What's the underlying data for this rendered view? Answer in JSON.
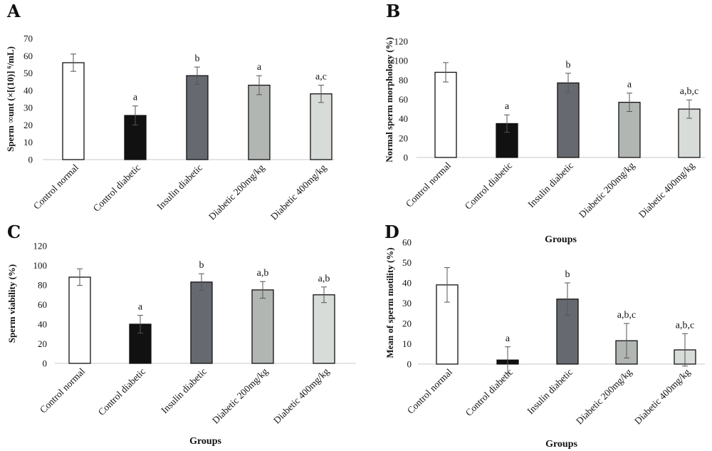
{
  "chart_data": [
    {
      "panel": "A",
      "type": "bar",
      "categories": [
        "Control normal",
        "Control diabetic",
        "Insulin diabetic",
        "Diabetic 200mg/kg",
        "Diabetic 400mg/kg"
      ],
      "values": [
        56,
        25.5,
        48.5,
        43,
        38
      ],
      "errors": [
        5,
        5.5,
        5,
        5.5,
        5
      ],
      "significance": [
        "",
        "a",
        "b",
        "a",
        "a,c"
      ],
      "colors": [
        "#ffffff",
        "#111111",
        "#666a70",
        "#b2b6b2",
        "#d8dcd8"
      ],
      "ylabel": "Sperm ∞unt (×[(10)] ⁶/mL)",
      "xlabel": "",
      "ylim": [
        0,
        70
      ],
      "yticks": [
        0,
        10,
        20,
        30,
        40,
        50,
        60,
        70
      ]
    },
    {
      "panel": "B",
      "type": "bar",
      "categories": [
        "Control normal",
        "Control diabetic",
        "Insulin diabetic",
        "Diabetic 200mg/kg",
        "Diabetic 400mg/kg"
      ],
      "values": [
        88,
        35,
        77,
        57,
        50
      ],
      "errors": [
        10,
        9,
        10,
        9.5,
        9.5
      ],
      "significance": [
        "",
        "a",
        "b",
        "a",
        "a,b,c"
      ],
      "colors": [
        "#ffffff",
        "#111111",
        "#666a70",
        "#b2b6b2",
        "#d8dcd8"
      ],
      "ylabel": "Normal sperm morphology (%)",
      "xlabel": "Groups",
      "ylim": [
        0,
        120
      ],
      "yticks": [
        0,
        20,
        40,
        60,
        80,
        100,
        120
      ]
    },
    {
      "panel": "C",
      "type": "bar",
      "categories": [
        "Control normal",
        "Control diabetic",
        "Insulin diabetic",
        "Diabetic 200mg/kg",
        "Diabetic 400mg/kg"
      ],
      "values": [
        88,
        40,
        83,
        75,
        70
      ],
      "errors": [
        8.5,
        9,
        8.5,
        8.5,
        8
      ],
      "significance": [
        "",
        "a",
        "b",
        "a,b",
        "a,b"
      ],
      "colors": [
        "#ffffff",
        "#111111",
        "#666a70",
        "#b2b6b2",
        "#d8dcd8"
      ],
      "ylabel": "Sperm viability (%)",
      "xlabel": "Groups",
      "ylim": [
        0,
        120
      ],
      "yticks": [
        0,
        20,
        40,
        60,
        80,
        100,
        120
      ]
    },
    {
      "panel": "D",
      "type": "bar",
      "categories": [
        "Control normal",
        "Control diabetic",
        "Insulin diabetic",
        "Diabetic 200mg/kg",
        "Diabetic 400mg/kg"
      ],
      "values": [
        39,
        2,
        32,
        11.5,
        7
      ],
      "errors": [
        8.5,
        6.5,
        8,
        8.5,
        8
      ],
      "significance": [
        "",
        "a",
        "b",
        "a,b,c",
        "a,b,c"
      ],
      "colors": [
        "#ffffff",
        "#111111",
        "#666a70",
        "#b2b6b2",
        "#d8dcd8"
      ],
      "ylabel": "Mean of sperm motility (%)",
      "xlabel": "Groups",
      "ylim": [
        0,
        60
      ],
      "yticks": [
        0,
        10,
        20,
        30,
        40,
        50,
        60
      ]
    }
  ]
}
